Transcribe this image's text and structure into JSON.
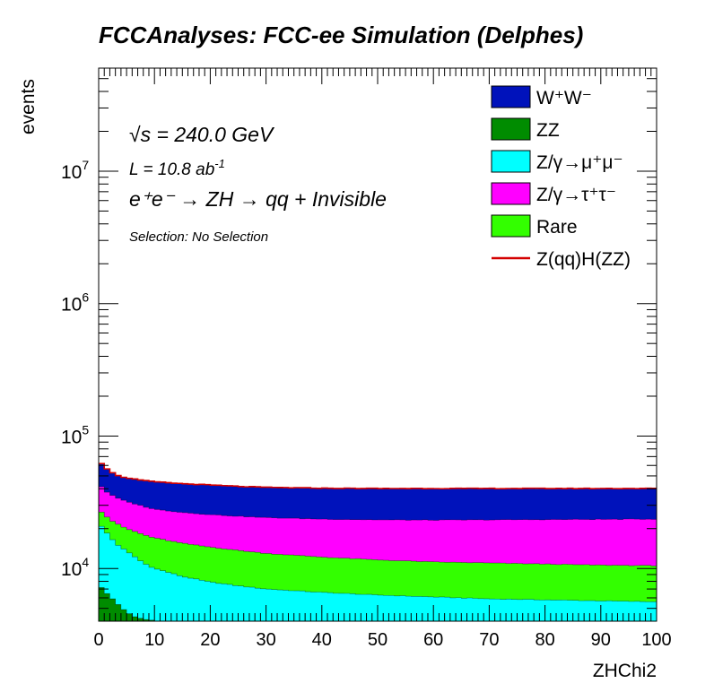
{
  "chart_data": {
    "type": "area",
    "stacked": true,
    "title": "FCCAnalyses: FCC-ee Simulation (Delphes)",
    "xlabel": "ZHChi2",
    "ylabel": "events",
    "xlim": [
      0,
      100
    ],
    "ylim": [
      4000,
      60000000
    ],
    "yscale": "log",
    "bin_width": 1,
    "grid": false,
    "legend_position": "top-right",
    "legend": [
      "W⁺W⁻",
      "ZZ",
      "Z/γ→μ⁺μ⁻",
      "Z/γ→τ⁺τ⁻",
      "Rare",
      "Z(qq)H(ZZ)"
    ],
    "x_ticks": [
      "0",
      "10",
      "20",
      "30",
      "40",
      "50",
      "60",
      "70",
      "80",
      "90",
      "100"
    ],
    "y_ticks": [
      {
        "base": "10",
        "exp": "4"
      },
      {
        "base": "10",
        "exp": "5"
      },
      {
        "base": "10",
        "exp": "6"
      },
      {
        "base": "10",
        "exp": "7"
      }
    ],
    "annotations": {
      "sqrt_s": "√s = 240.0 GeV",
      "lumi_base": "L = 10.8 ab",
      "lumi_exp": "-1",
      "process": "e⁺e⁻ → ZH → qq + Invisible",
      "selection": "Selection: No Selection"
    },
    "series": [
      {
        "name": "ZZ",
        "color": "#008c00",
        "cumulative_top": {
          "x": [
            0,
            1,
            2,
            3,
            4,
            5,
            6,
            8,
            10,
            12,
            15,
            20,
            100
          ],
          "y": [
            7500,
            6800,
            6200,
            5600,
            5100,
            4700,
            4400,
            4150,
            4020,
            3950,
            3900,
            3850,
            3850
          ]
        }
      },
      {
        "name": "Z/γ→μ⁺μ⁻",
        "color": "#00ffff",
        "cumulative_top": {
          "x": [
            0,
            1,
            2,
            3,
            5,
            8,
            10,
            15,
            20,
            25,
            30,
            40,
            50,
            60,
            70,
            80,
            90,
            100
          ],
          "y": [
            22000,
            19500,
            17500,
            15500,
            13500,
            11000,
            10000,
            8700,
            7900,
            7400,
            7000,
            6600,
            6300,
            6100,
            5900,
            5800,
            5700,
            5600
          ]
        }
      },
      {
        "name": "Rare",
        "color": "#33ff00",
        "cumulative_top": {
          "x": [
            0,
            1,
            2,
            3,
            5,
            8,
            10,
            15,
            20,
            25,
            30,
            40,
            50,
            60,
            70,
            80,
            90,
            100
          ],
          "y": [
            28000,
            25500,
            23500,
            22000,
            20000,
            18000,
            17000,
            15500,
            14500,
            13700,
            13000,
            12200,
            11600,
            11200,
            11000,
            10800,
            10600,
            10500
          ]
        }
      },
      {
        "name": "Z/γ→τ⁺τ⁻",
        "color": "#ff00ff",
        "cumulative_top": {
          "x": [
            0,
            1,
            2,
            3,
            5,
            8,
            10,
            15,
            20,
            25,
            30,
            40,
            50,
            60,
            70,
            80,
            90,
            100
          ],
          "y": [
            44000,
            39000,
            36500,
            34500,
            32000,
            29500,
            28000,
            26500,
            25500,
            24800,
            24200,
            23600,
            23300,
            23200,
            23300,
            23400,
            23500,
            23600
          ]
        }
      },
      {
        "name": "W⁺W⁻",
        "color": "#0012bb",
        "cumulative_top": {
          "x": [
            0,
            1,
            2,
            3,
            5,
            8,
            10,
            15,
            20,
            25,
            30,
            40,
            50,
            60,
            70,
            80,
            90,
            100
          ],
          "y": [
            65000,
            59000,
            54000,
            51000,
            48000,
            46000,
            45000,
            43500,
            42500,
            41500,
            40800,
            40200,
            40000,
            40000,
            40000,
            40000,
            40000,
            40000
          ]
        }
      },
      {
        "name": "Z(qq)H(ZZ)",
        "color": "#d40000",
        "style": "line",
        "cumulative_top": {
          "x": [
            0,
            1,
            2,
            3,
            5,
            8,
            10,
            15,
            20,
            25,
            30,
            40,
            50,
            60,
            70,
            80,
            90,
            100
          ],
          "y": [
            65200,
            59200,
            54200,
            51200,
            48200,
            46200,
            45200,
            43700,
            42700,
            41700,
            41000,
            40400,
            40200,
            40200,
            40200,
            40200,
            40200,
            40200
          ]
        }
      }
    ]
  },
  "colors": {
    "frame": "#000000",
    "background": "#ffffff"
  }
}
